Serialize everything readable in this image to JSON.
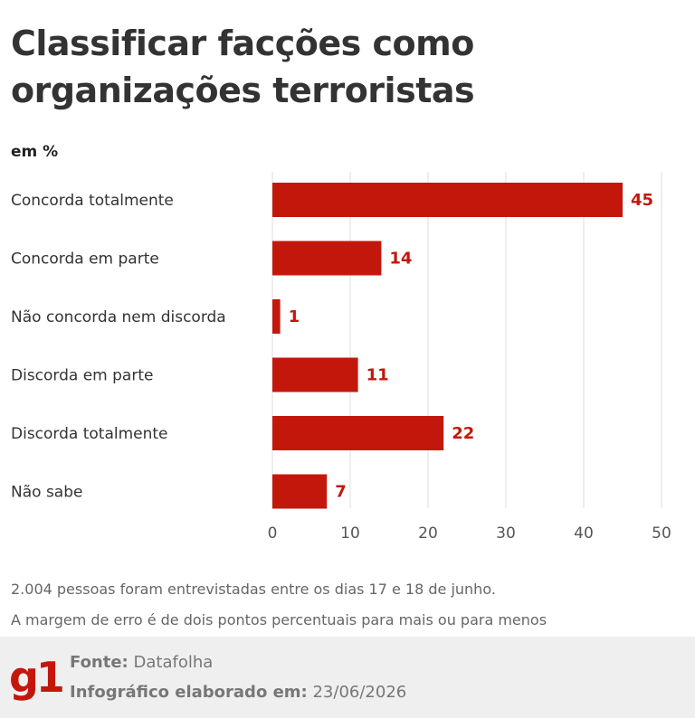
{
  "title_line1": "Classificar facções como",
  "title_line2": "organizações terroristas",
  "unit": "em %",
  "chart_data": {
    "type": "bar",
    "orientation": "horizontal",
    "categories": [
      "Concorda totalmente",
      "Concorda em parte",
      "Não concorda nem discorda",
      "Discorda em parte",
      "Discorda totalmente",
      "Não sabe"
    ],
    "values": [
      45,
      14,
      1,
      11,
      22,
      7
    ],
    "xlim": [
      0,
      50
    ],
    "xticks": [
      0,
      10,
      20,
      30,
      40,
      50
    ],
    "grid": true,
    "bar_color": "#c4170c"
  },
  "notes": {
    "line1": "2.004 pessoas foram entrevistadas entre os dias 17 e 18 de junho.",
    "line2": "A margem de erro é de dois pontos percentuais para mais ou para menos"
  },
  "footer": {
    "logo": "g1",
    "source_label": "Fonte:",
    "source_value": "Datafolha",
    "date_label": "Infográfico elaborado em:",
    "date_value": "23/06/2026",
    "logo_color": "#c4170c"
  }
}
